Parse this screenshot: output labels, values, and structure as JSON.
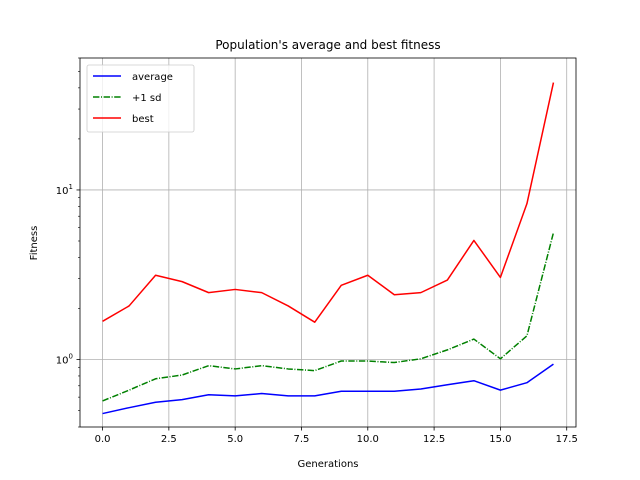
{
  "chart_data": {
    "type": "line",
    "title": "Population's average and best fitness",
    "xlabel": "Generations",
    "ylabel": "Fitness",
    "yscale": "log",
    "grid": true,
    "legend_position": "top-left",
    "xlim": [
      -0.85,
      17.85
    ],
    "ylim": [
      0.4,
      60
    ],
    "x_ticks": [
      0.0,
      2.5,
      5.0,
      7.5,
      10.0,
      12.5,
      15.0,
      17.5
    ],
    "x_tick_labels": [
      "0.0",
      "2.5",
      "5.0",
      "7.5",
      "10.0",
      "12.5",
      "15.0",
      "17.5"
    ],
    "y_major_ticks": [
      1,
      10
    ],
    "y_tick_labels": [
      {
        "base": "10",
        "exp": "0"
      },
      {
        "base": "10",
        "exp": "1"
      }
    ],
    "x": [
      0,
      1,
      2,
      3,
      4,
      5,
      6,
      7,
      8,
      9,
      10,
      11,
      12,
      13,
      14,
      15,
      16,
      17
    ],
    "series": [
      {
        "name": "average",
        "color": "#0000ff",
        "style": "solid",
        "values": [
          0.48,
          0.52,
          0.56,
          0.58,
          0.62,
          0.61,
          0.63,
          0.61,
          0.61,
          0.65,
          0.65,
          0.65,
          0.67,
          0.71,
          0.75,
          0.66,
          0.73,
          0.94
        ]
      },
      {
        "name": "+1 sd",
        "color": "#008000",
        "style": "dashdot",
        "values": [
          0.57,
          0.66,
          0.77,
          0.81,
          0.92,
          0.88,
          0.92,
          0.88,
          0.86,
          0.98,
          0.98,
          0.96,
          1.01,
          1.14,
          1.32,
          1.01,
          1.38,
          5.6
        ]
      },
      {
        "name": "best",
        "color": "#ff0000",
        "style": "solid",
        "values": [
          1.68,
          2.07,
          3.14,
          2.88,
          2.48,
          2.59,
          2.48,
          2.07,
          1.66,
          2.74,
          3.14,
          2.41,
          2.48,
          2.94,
          5.04,
          3.05,
          8.3,
          43
        ]
      }
    ]
  }
}
